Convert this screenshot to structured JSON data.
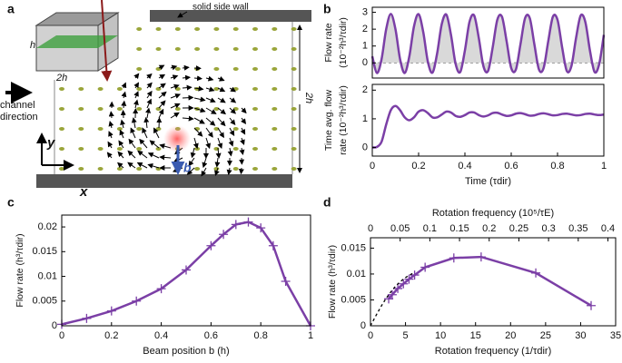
{
  "illustration": {
    "panel": "a",
    "wall_label": "solid side wall",
    "flow_label": [
      "channel",
      "direction"
    ],
    "inset_height": "h",
    "inset_width": "2h",
    "channel_width": "2h",
    "axis_y": "y",
    "axis_x": "x",
    "beam_label": "b"
  },
  "chart_data": [
    {
      "type": "line",
      "panel": "b",
      "ylabel": [
        "Flow rate",
        "(10⁻²h³/τdir)"
      ],
      "x": [
        0,
        0.02,
        0.04,
        0.06,
        0.08,
        0.1,
        0.12,
        0.14,
        0.16,
        0.18,
        0.2,
        0.22,
        0.24,
        0.26,
        0.28,
        0.3,
        0.32,
        0.34,
        0.36,
        0.38,
        0.4,
        0.42,
        0.44,
        0.46,
        0.48,
        0.5,
        0.52,
        0.54,
        0.56,
        0.58,
        0.6,
        0.62,
        0.64,
        0.66,
        0.68,
        0.7,
        0.72,
        0.74,
        0.76,
        0.78,
        0.8,
        0.82,
        0.84,
        0.86,
        0.88,
        0.9,
        0.92,
        0.94,
        0.96,
        0.98,
        1
      ],
      "series": [
        {
          "color": "#7b3fa6",
          "fill": "#d9d9d9",
          "values": [
            0.39,
            -0.6,
            0.22,
            2.0,
            2.9,
            2.0,
            0.22,
            -0.6,
            0.39,
            2.16,
            2.89,
            1.83,
            0.07,
            -0.58,
            0.56,
            2.3,
            2.86,
            1.65,
            -0.07,
            -0.54,
            0.74,
            2.44,
            2.81,
            1.47,
            -0.2,
            -0.48,
            0.92,
            2.56,
            2.74,
            1.29,
            -0.31,
            -0.4,
            1.11,
            2.66,
            2.66,
            1.1,
            -0.4,
            -0.3,
            1.29,
            2.74,
            2.55,
            0.91,
            -0.48,
            -0.19,
            1.48,
            2.81,
            2.43,
            0.73,
            -0.54,
            -0.07,
            1.66
          ]
        }
      ],
      "xlim": [
        0,
        1
      ],
      "ylim": [
        -0.9,
        3.3
      ],
      "yticks": [
        0,
        1,
        2,
        3
      ],
      "zero_line": true
    },
    {
      "type": "line",
      "ylabel": [
        "Time avg. flow",
        "rate (10⁻²h³/τdir)"
      ],
      "xlabel": "Time (τdir)",
      "x": [
        0,
        0.02,
        0.04,
        0.06,
        0.08,
        0.1,
        0.12,
        0.14,
        0.16,
        0.18,
        0.2,
        0.22,
        0.24,
        0.26,
        0.28,
        0.3,
        0.32,
        0.34,
        0.36,
        0.38,
        0.4,
        0.42,
        0.44,
        0.46,
        0.48,
        0.5,
        0.52,
        0.54,
        0.56,
        0.58,
        0.6,
        0.62,
        0.64,
        0.66,
        0.68,
        0.7,
        0.72,
        0.74,
        0.76,
        0.78,
        0.8,
        0.82,
        0.84,
        0.86,
        0.88,
        0.9,
        0.92,
        0.94,
        0.96,
        0.98,
        1
      ],
      "series": [
        {
          "color": "#7b3fa6",
          "values": [
            0,
            0.02,
            0.2,
            0.8,
            1.3,
            1.45,
            1.3,
            1.05,
            0.95,
            1.05,
            1.25,
            1.3,
            1.2,
            1.05,
            1.05,
            1.15,
            1.25,
            1.22,
            1.1,
            1.07,
            1.13,
            1.22,
            1.22,
            1.13,
            1.08,
            1.12,
            1.2,
            1.21,
            1.15,
            1.1,
            1.12,
            1.18,
            1.2,
            1.16,
            1.11,
            1.12,
            1.17,
            1.19,
            1.16,
            1.12,
            1.13,
            1.17,
            1.18,
            1.15,
            1.12,
            1.13,
            1.17,
            1.18,
            1.15,
            1.13,
            1.15
          ]
        }
      ],
      "xlim": [
        0,
        1
      ],
      "ylim": [
        -0.3,
        2.2
      ],
      "yticks": [
        0,
        1,
        2
      ],
      "xticks": [
        0,
        0.2,
        0.4,
        0.6,
        0.8,
        1
      ]
    },
    {
      "type": "line",
      "panel": "c",
      "ylabel": [
        "Flow rate (h³/τdir)"
      ],
      "xlabel": "Beam position b (h)",
      "marker": "+",
      "x": [
        0,
        0.1,
        0.2,
        0.3,
        0.4,
        0.5,
        0.6,
        0.65,
        0.7,
        0.75,
        0.8,
        0.85,
        0.9,
        1
      ],
      "series": [
        {
          "color": "#7b3fa6",
          "values": [
            0.0003,
            0.0015,
            0.003,
            0.005,
            0.0075,
            0.0113,
            0.0162,
            0.0185,
            0.0205,
            0.021,
            0.0198,
            0.0162,
            0.009,
            0
          ]
        }
      ],
      "xlim": [
        0,
        1
      ],
      "ylim": [
        0,
        0.0224
      ],
      "yticks": [
        0,
        0.005,
        0.01,
        0.015,
        0.02
      ],
      "xticks": [
        0,
        0.2,
        0.4,
        0.6,
        0.8,
        1
      ]
    },
    {
      "type": "line",
      "panel": "d",
      "ylabel": [
        "Flow rate (h³/τdir)"
      ],
      "xlabel": "Rotation frequency  (1/τdir)",
      "x2label": "Rotation frequency (10⁵/τE)",
      "marker": "+",
      "x": [
        2.6,
        3.1,
        3.9,
        4.7,
        5.5,
        6.3,
        7.8,
        11.9,
        15.8,
        23.6,
        31.5
      ],
      "series": [
        {
          "color": "#7b3fa6",
          "values": [
            0.0052,
            0.006,
            0.0072,
            0.0081,
            0.009,
            0.0098,
            0.0113,
            0.0131,
            0.0133,
            0.0102,
            0.0039
          ]
        },
        {
          "color": "#000000",
          "dash": true,
          "x": [
            0,
            1,
            2,
            3,
            4,
            5,
            6
          ],
          "values": [
            0,
            0.0025,
            0.0048,
            0.0067,
            0.0082,
            0.0093,
            0.0101
          ]
        }
      ],
      "xlim": [
        0,
        35
      ],
      "ylim": [
        0,
        0.017
      ],
      "yticks": [
        0,
        0.005,
        0.01,
        0.015
      ],
      "xticks": [
        0,
        5,
        10,
        15,
        20,
        25,
        30,
        35
      ],
      "x2lim": [
        0,
        0.413
      ],
      "x2ticks": [
        0,
        0.05,
        0.1,
        0.15,
        0.2,
        0.25,
        0.3,
        0.35,
        0.4
      ]
    }
  ]
}
